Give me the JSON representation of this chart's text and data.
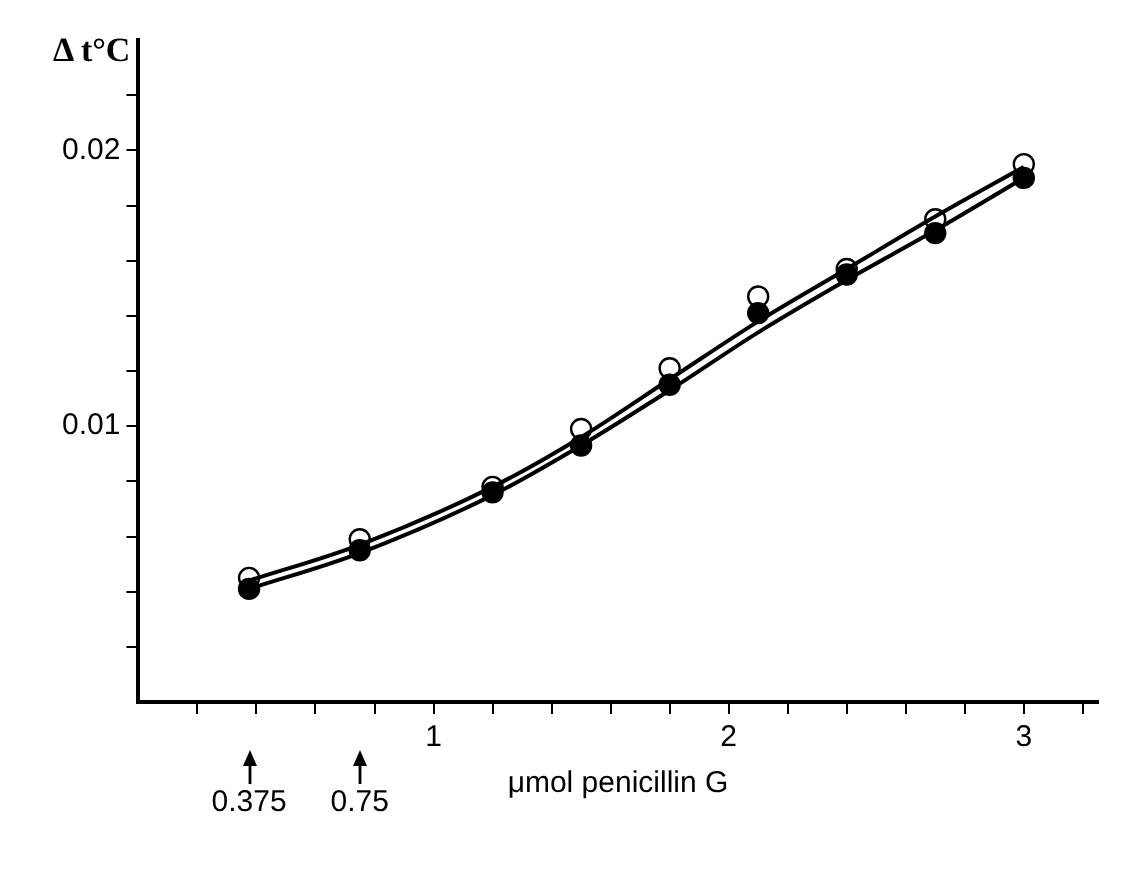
{
  "chart_data": {
    "type": "scatter",
    "ylabel": "Δ t°C",
    "xlabel": "μmol penicillin G",
    "xlim": [
      0,
      3.25
    ],
    "ylim": [
      0,
      0.024
    ],
    "xticks": [
      {
        "value": 0.2,
        "label": null
      },
      {
        "value": 0.4,
        "label": null
      },
      {
        "value": 0.6,
        "label": null
      },
      {
        "value": 0.8,
        "label": null
      },
      1,
      {
        "value": 1.2,
        "label": null
      },
      {
        "value": 1.4,
        "label": null
      },
      {
        "value": 1.6,
        "label": null
      },
      {
        "value": 1.8,
        "label": null
      },
      2,
      {
        "value": 2.2,
        "label": null
      },
      {
        "value": 2.4,
        "label": null
      },
      {
        "value": 2.6,
        "label": null
      },
      {
        "value": 2.8,
        "label": null
      },
      3,
      {
        "value": 3.2,
        "label": null
      }
    ],
    "yticks": [
      {
        "value": 0.002,
        "label": null
      },
      {
        "value": 0.004,
        "label": null
      },
      {
        "value": 0.006,
        "label": null
      },
      {
        "value": 0.008,
        "label": null
      },
      0.01,
      {
        "value": 0.012,
        "label": null
      },
      {
        "value": 0.014,
        "label": null
      },
      {
        "value": 0.016,
        "label": null
      },
      {
        "value": 0.018,
        "label": null
      },
      0.02,
      {
        "value": 0.022,
        "label": null
      }
    ],
    "grid": false,
    "legend": false,
    "series": [
      {
        "type": "line",
        "color": "#000000",
        "marker": "none",
        "x": [
          0.375,
          0.75,
          1.2,
          1.5,
          1.8,
          2.1,
          2.4,
          2.7,
          3
        ],
        "values": [
          0.0044,
          0.0057,
          0.0078,
          0.0096,
          0.0117,
          0.0138,
          0.0157,
          0.0176,
          0.0194
        ]
      },
      {
        "type": "line",
        "color": "#000000",
        "marker": "none",
        "x": [
          0.375,
          0.75,
          1.2,
          1.5,
          1.8,
          2.1,
          2.4,
          2.7,
          3
        ],
        "values": [
          0.0041,
          0.0054,
          0.0075,
          0.0093,
          0.0113,
          0.0134,
          0.0153,
          0.0171,
          0.019
        ]
      },
      {
        "color": "#000000",
        "marker": "circle",
        "x": [
          0.375,
          0.75,
          1.2,
          1.5,
          1.8,
          2.1,
          2.4,
          2.7,
          3
        ],
        "values": [
          0.0041,
          0.0055,
          0.0076,
          0.0093,
          0.0115,
          0.0141,
          0.0155,
          0.017,
          0.019
        ]
      },
      {
        "color": "#ffffff",
        "marker": "circle",
        "x": [
          0.375,
          0.75,
          1.2,
          1.5,
          1.8,
          2.1,
          2.4,
          2.7,
          3
        ],
        "values": [
          0.0045,
          0.0059,
          0.0078,
          0.0099,
          0.0121,
          0.0147,
          0.0157,
          0.0175,
          0.0195
        ]
      }
    ],
    "annotations": [
      "0.375",
      "0.75"
    ]
  }
}
